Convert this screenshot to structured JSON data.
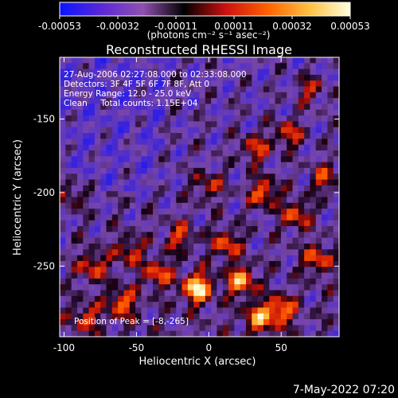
{
  "chart_data": {
    "type": "heatmap",
    "title": "Reconstructed RHESSI Image",
    "xlabel": "Heliocentric X (arcsec)",
    "ylabel": "Heliocentric Y (arcsec)",
    "xlim": [
      -103,
      90
    ],
    "ylim": [
      -298,
      -108
    ],
    "x_ticks": [
      -100,
      -50,
      0,
      50
    ],
    "y_ticks": [
      -150,
      -200,
      -250
    ],
    "colorbar": {
      "range": [
        -0.00053,
        0.00053
      ],
      "tick_labels": [
        "-0.00053",
        "-0.00032",
        "-0.00011",
        "0.00011",
        "0.00032",
        "0.00053"
      ],
      "unit_label": "(photons cm⁻² s⁻¹ asec⁻²)",
      "colormap": [
        "#0a14ff",
        "#5a28d8",
        "#9050b0",
        "#000000",
        "#cc1010",
        "#ff6000",
        "#ffc040",
        "#ffffe0"
      ]
    },
    "annotations": [
      "27-Aug-2006 02:27:08.000 to 02:33:08.000",
      "Detectors: 3F 4F 5F 6F 7F 8F, Att 0",
      "Energy Range: 12.0 - 25.0 keV",
      "Clean     Total counts: 1.15E+04"
    ],
    "peak_note": "Position of Peak = [-8,-265]",
    "peak": {
      "x": -8,
      "y": -265
    },
    "sources": [
      {
        "x": -8,
        "y": -265,
        "v": 1.0
      },
      {
        "x": 22,
        "y": -260,
        "v": 0.75
      },
      {
        "x": 35,
        "y": -285,
        "v": 0.7
      },
      {
        "x": 50,
        "y": -280,
        "v": 0.65
      },
      {
        "x": -60,
        "y": -275,
        "v": 0.6
      },
      {
        "x": -35,
        "y": -255,
        "v": 0.55
      },
      {
        "x": 12,
        "y": -235,
        "v": 0.55
      },
      {
        "x": 38,
        "y": -200,
        "v": 0.6
      },
      {
        "x": 60,
        "y": -215,
        "v": 0.55
      },
      {
        "x": 75,
        "y": -245,
        "v": 0.55
      },
      {
        "x": 32,
        "y": -170,
        "v": 0.5
      },
      {
        "x": 55,
        "y": -160,
        "v": 0.5
      },
      {
        "x": -20,
        "y": -230,
        "v": 0.45
      },
      {
        "x": -55,
        "y": -240,
        "v": 0.45
      },
      {
        "x": -80,
        "y": -250,
        "v": 0.5
      },
      {
        "x": -85,
        "y": -285,
        "v": 0.45
      },
      {
        "x": 80,
        "y": -190,
        "v": 0.45
      },
      {
        "x": 0,
        "y": -195,
        "v": 0.4
      },
      {
        "x": -95,
        "y": -200,
        "v": 0.35
      },
      {
        "x": 70,
        "y": -130,
        "v": 0.4
      }
    ],
    "grid": false
  },
  "footer": {
    "timestamp": "7-May-2022 07:20"
  }
}
